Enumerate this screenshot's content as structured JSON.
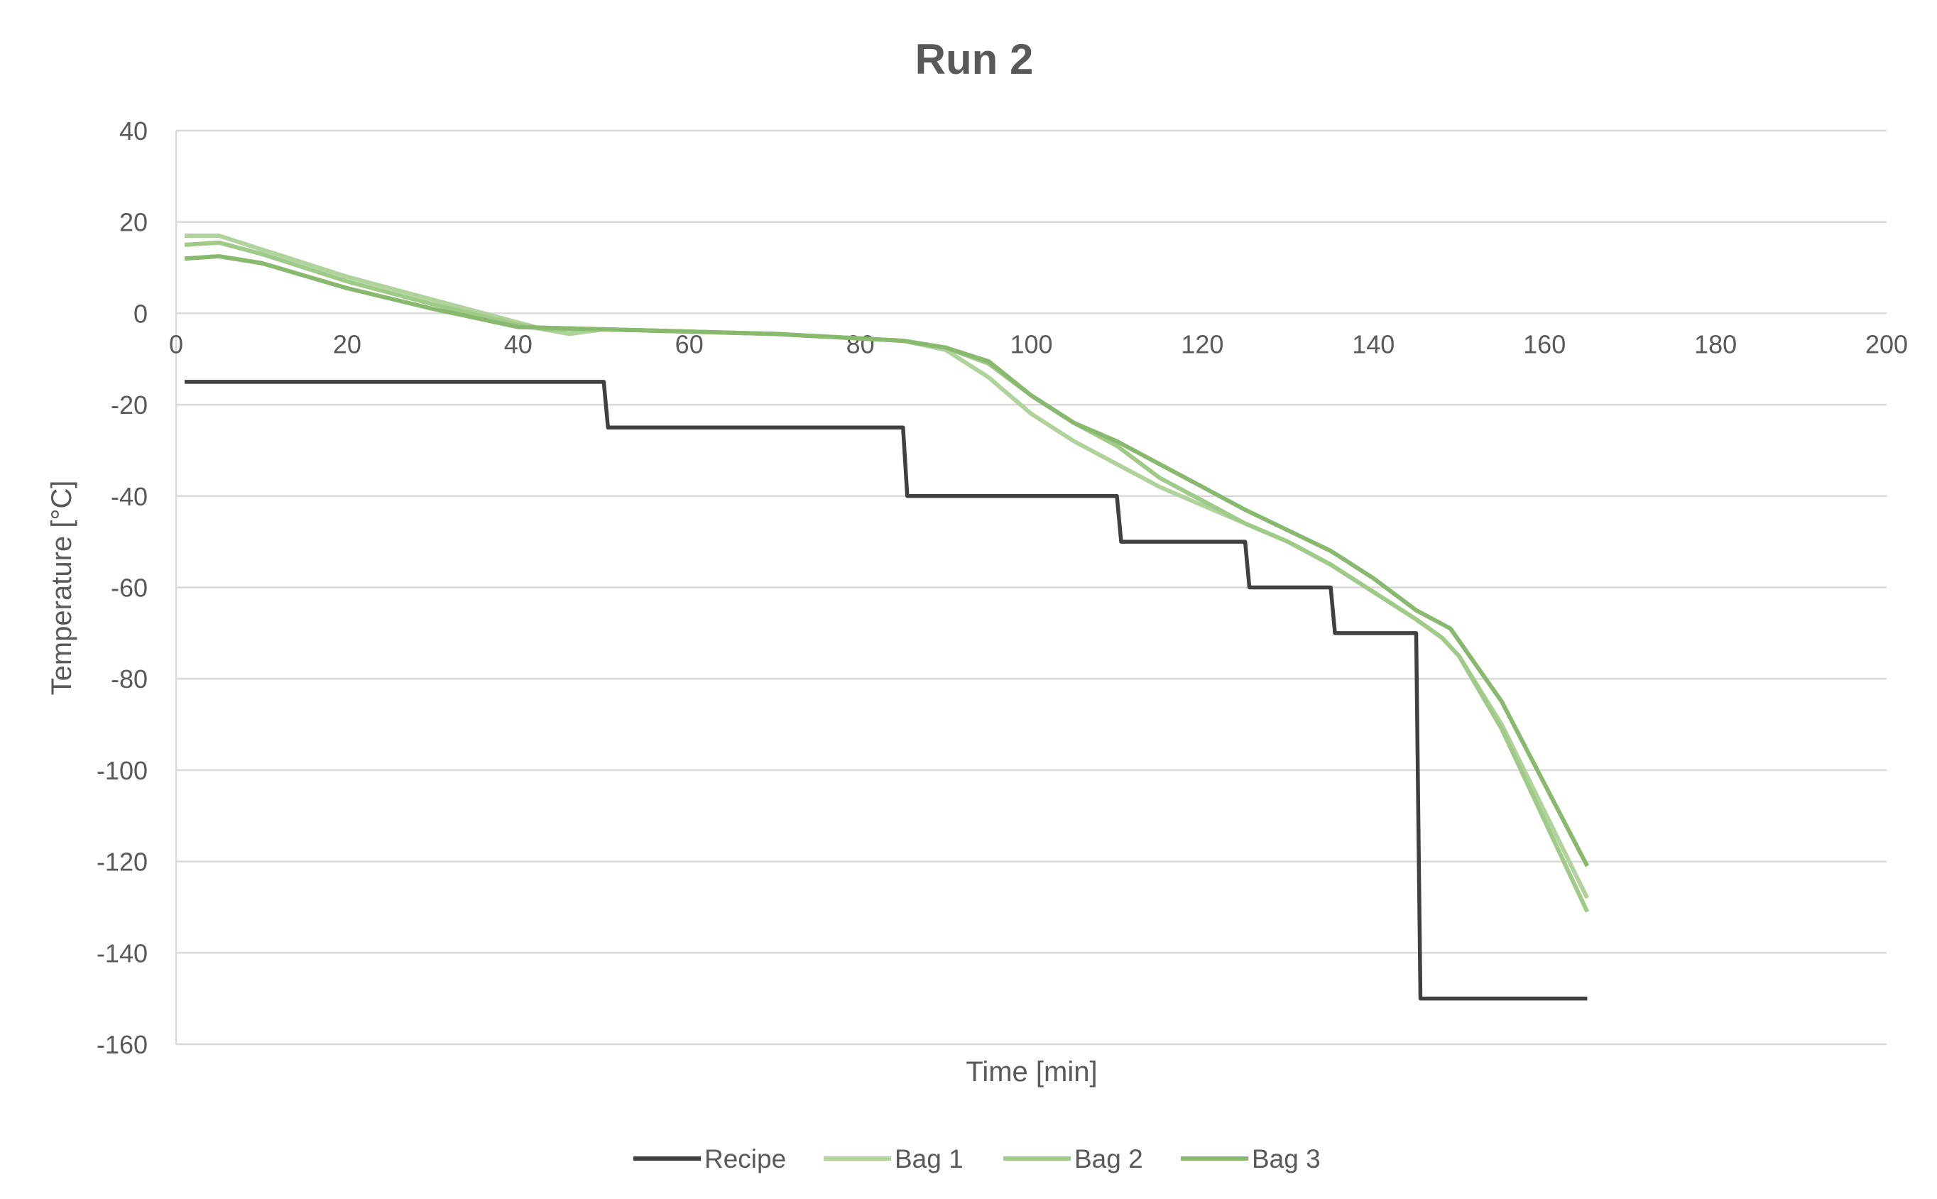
{
  "chart_data": {
    "type": "line",
    "title": "Run 2",
    "xlabel": "Time [min]",
    "ylabel": "Temperature [°C]",
    "xlim": [
      0,
      200
    ],
    "ylim": [
      -160,
      40
    ],
    "xticks": [
      "0",
      "20",
      "40",
      "60",
      "80",
      "100",
      "120",
      "140",
      "160",
      "180",
      "200"
    ],
    "yticks": [
      "40",
      "20",
      "0",
      "-20",
      "-40",
      "-60",
      "-80",
      "-100",
      "-120",
      "-140",
      "-160"
    ],
    "grid": true,
    "legend_position": "bottom",
    "series": [
      {
        "name": "Recipe",
        "color": "#404040",
        "points": [
          [
            1,
            -15
          ],
          [
            50,
            -15
          ],
          [
            50.5,
            -25
          ],
          [
            85,
            -25
          ],
          [
            85.5,
            -40
          ],
          [
            110,
            -40
          ],
          [
            110.5,
            -50
          ],
          [
            125,
            -50
          ],
          [
            125.5,
            -60
          ],
          [
            135,
            -60
          ],
          [
            135.5,
            -70
          ],
          [
            145,
            -70
          ],
          [
            145.5,
            -150
          ],
          [
            165,
            -150
          ]
        ]
      },
      {
        "name": "Bag 1",
        "color": "#b0d39b",
        "points": [
          [
            1,
            17
          ],
          [
            5,
            17
          ],
          [
            10,
            14
          ],
          [
            20,
            8
          ],
          [
            30,
            3
          ],
          [
            40,
            -2
          ],
          [
            43,
            -3.5
          ],
          [
            46,
            -4.5
          ],
          [
            50,
            -3.5
          ],
          [
            60,
            -4
          ],
          [
            70,
            -4.5
          ],
          [
            80,
            -5.5
          ],
          [
            85,
            -6
          ],
          [
            90,
            -8
          ],
          [
            95,
            -14
          ],
          [
            100,
            -22
          ],
          [
            105,
            -28
          ],
          [
            110,
            -33
          ],
          [
            115,
            -38
          ],
          [
            120,
            -42
          ],
          [
            125,
            -46
          ],
          [
            130,
            -50
          ],
          [
            135,
            -55
          ],
          [
            140,
            -61
          ],
          [
            145,
            -67
          ],
          [
            148,
            -71
          ],
          [
            150,
            -75
          ],
          [
            155,
            -90
          ],
          [
            160,
            -109
          ],
          [
            165,
            -128
          ]
        ]
      },
      {
        "name": "Bag 2",
        "color": "#9fca88",
        "points": [
          [
            1,
            15
          ],
          [
            5,
            15.5
          ],
          [
            10,
            13
          ],
          [
            20,
            7
          ],
          [
            30,
            2
          ],
          [
            40,
            -2.5
          ],
          [
            43,
            -3.5
          ],
          [
            50,
            -3.5
          ],
          [
            60,
            -4
          ],
          [
            70,
            -4.5
          ],
          [
            80,
            -5.5
          ],
          [
            85,
            -6
          ],
          [
            90,
            -7.5
          ],
          [
            95,
            -11
          ],
          [
            100,
            -18
          ],
          [
            105,
            -24
          ],
          [
            110,
            -29
          ],
          [
            115,
            -36
          ],
          [
            120,
            -41
          ],
          [
            125,
            -46
          ],
          [
            130,
            -50
          ],
          [
            135,
            -55
          ],
          [
            140,
            -61
          ],
          [
            145,
            -67
          ],
          [
            148,
            -71
          ],
          [
            150,
            -75
          ],
          [
            155,
            -91
          ],
          [
            160,
            -111
          ],
          [
            165,
            -131
          ]
        ]
      },
      {
        "name": "Bag 3",
        "color": "#88b96e",
        "points": [
          [
            1,
            12
          ],
          [
            5,
            12.5
          ],
          [
            10,
            11
          ],
          [
            20,
            5.5
          ],
          [
            30,
            1
          ],
          [
            40,
            -3
          ],
          [
            50,
            -3.5
          ],
          [
            60,
            -4
          ],
          [
            70,
            -4.5
          ],
          [
            80,
            -5.5
          ],
          [
            85,
            -6
          ],
          [
            90,
            -7.5
          ],
          [
            95,
            -10.5
          ],
          [
            100,
            -18
          ],
          [
            105,
            -24
          ],
          [
            110,
            -28
          ],
          [
            112,
            -30
          ],
          [
            115,
            -33
          ],
          [
            120,
            -38
          ],
          [
            125,
            -43
          ],
          [
            130,
            -47.5
          ],
          [
            135,
            -52
          ],
          [
            140,
            -58
          ],
          [
            145,
            -65
          ],
          [
            147,
            -67
          ],
          [
            149,
            -69
          ],
          [
            155,
            -85
          ],
          [
            160,
            -103
          ],
          [
            165,
            -121
          ]
        ]
      }
    ]
  }
}
